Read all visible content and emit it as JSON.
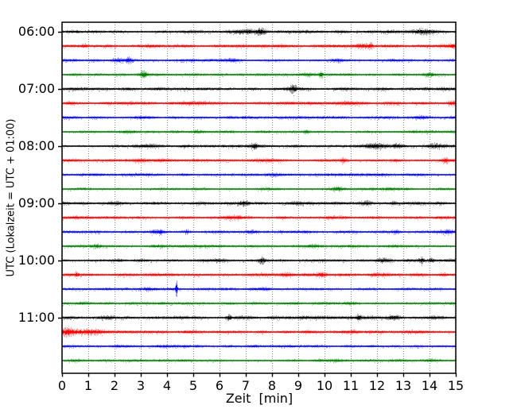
{
  "figure": {
    "background": "#ffffff"
  },
  "chart_data": {
    "type": "line",
    "subtype": "helicorder-seismogram-drumplot",
    "title": "",
    "xlabel": "Zeit  [min]",
    "ylabel": "UTC (Lokalzeit = UTC + 01:00)",
    "x_range": [
      0,
      15
    ],
    "x_ticks": [
      0,
      1,
      2,
      3,
      4,
      5,
      6,
      7,
      8,
      9,
      10,
      11,
      12,
      13,
      14,
      15
    ],
    "minutes_per_trace": 15,
    "grid": {
      "vertical_dotted": true,
      "color": "#8a8a8a"
    },
    "frame_color": "#000000",
    "palette": {
      "k": "#000000",
      "r": "#ff0000",
      "b": "#0000ff",
      "g": "#008000"
    },
    "y_tick_labels": [
      {
        "label": "06:00",
        "row": 0
      },
      {
        "label": "07:00",
        "row": 4
      },
      {
        "label": "08:00",
        "row": 8
      },
      {
        "label": "09:00",
        "row": 12
      },
      {
        "label": "10:00",
        "row": 16
      },
      {
        "label": "11:00",
        "row": 20
      }
    ],
    "traces": [
      {
        "time": "06:00",
        "color": "k",
        "base": 1.6,
        "events": [
          [
            5.0,
            0.4,
            0.5
          ],
          [
            7.0,
            0.8,
            0.6
          ],
          [
            7.6,
            2.2,
            0.18
          ],
          [
            8.3,
            0.6,
            0.3
          ],
          [
            12.4,
            0.5,
            0.3
          ],
          [
            13.8,
            1.0,
            0.35
          ]
        ]
      },
      {
        "time": "06:15",
        "color": "r",
        "base": 1.55,
        "events": [
          [
            0.85,
            0.8,
            0.12
          ],
          [
            3.4,
            0.4,
            0.3
          ],
          [
            8.2,
            0.5,
            0.25
          ],
          [
            11.4,
            1.2,
            0.3
          ],
          [
            11.75,
            1.5,
            0.1
          ],
          [
            14.9,
            0.9,
            0.15
          ]
        ]
      },
      {
        "time": "06:30",
        "color": "b",
        "base": 1.35,
        "events": [
          [
            2.1,
            0.6,
            0.3
          ],
          [
            2.55,
            1.2,
            0.12
          ],
          [
            6.5,
            0.4,
            0.3
          ],
          [
            10.4,
            0.8,
            0.25
          ],
          [
            12.6,
            0.5,
            0.2
          ]
        ]
      },
      {
        "time": "06:45",
        "color": "g",
        "base": 1.35,
        "events": [
          [
            2.3,
            0.5,
            0.3
          ],
          [
            3.1,
            2.2,
            0.12
          ],
          [
            9.3,
            0.9,
            0.3
          ],
          [
            9.85,
            1.6,
            0.08
          ],
          [
            14.0,
            0.8,
            0.2
          ]
        ]
      },
      {
        "time": "07:00",
        "color": "k",
        "base": 1.6,
        "events": [
          [
            4.0,
            0.4,
            0.5
          ],
          [
            8.55,
            0.8,
            0.3
          ],
          [
            8.8,
            2.0,
            0.12
          ],
          [
            12.0,
            0.4,
            0.4
          ],
          [
            14.6,
            0.7,
            0.3
          ]
        ]
      },
      {
        "time": "07:15",
        "color": "r",
        "base": 1.55,
        "events": [
          [
            0.3,
            0.5,
            0.2
          ],
          [
            5.0,
            0.3,
            0.5
          ],
          [
            11.0,
            0.4,
            0.4
          ],
          [
            14.85,
            1.8,
            0.18
          ]
        ]
      },
      {
        "time": "07:30",
        "color": "b",
        "base": 1.35,
        "events": [
          [
            3.0,
            0.3,
            0.4
          ],
          [
            7.0,
            0.4,
            0.3
          ],
          [
            13.7,
            0.6,
            0.3
          ]
        ]
      },
      {
        "time": "07:45",
        "color": "g",
        "base": 1.35,
        "events": [
          [
            2.5,
            0.4,
            0.3
          ],
          [
            5.2,
            0.5,
            0.3
          ],
          [
            9.3,
            1.4,
            0.1
          ],
          [
            11.5,
            0.4,
            0.3
          ]
        ]
      },
      {
        "time": "08:00",
        "color": "k",
        "base": 1.6,
        "events": [
          [
            3.0,
            0.4,
            0.5
          ],
          [
            7.3,
            1.6,
            0.15
          ],
          [
            11.9,
            0.8,
            0.4
          ],
          [
            12.8,
            0.8,
            0.2
          ],
          [
            14.2,
            0.5,
            0.3
          ]
        ]
      },
      {
        "time": "08:15",
        "color": "r",
        "base": 1.55,
        "events": [
          [
            3.0,
            0.5,
            0.8
          ],
          [
            8.0,
            0.6,
            0.5
          ],
          [
            10.7,
            1.2,
            0.1
          ],
          [
            14.6,
            1.3,
            0.12
          ]
        ]
      },
      {
        "time": "08:30",
        "color": "b",
        "base": 1.35,
        "events": [
          [
            2.0,
            0.3,
            0.4
          ],
          [
            8.0,
            0.3,
            0.5
          ],
          [
            12.3,
            0.5,
            0.25
          ]
        ]
      },
      {
        "time": "08:45",
        "color": "g",
        "base": 1.35,
        "events": [
          [
            1.5,
            0.4,
            0.3
          ],
          [
            10.5,
            1.0,
            0.2
          ],
          [
            12.4,
            0.6,
            0.2
          ]
        ]
      },
      {
        "time": "09:00",
        "color": "k",
        "base": 1.6,
        "events": [
          [
            2.0,
            0.3,
            0.5
          ],
          [
            6.9,
            1.1,
            0.15
          ],
          [
            9.0,
            0.4,
            0.4
          ],
          [
            11.6,
            1.3,
            0.25
          ],
          [
            12.65,
            1.1,
            0.15
          ]
        ]
      },
      {
        "time": "09:15",
        "color": "r",
        "base": 1.55,
        "events": [
          [
            0.5,
            0.5,
            0.15
          ],
          [
            6.5,
            0.4,
            0.4
          ],
          [
            8.3,
            0.5,
            0.3
          ],
          [
            10.2,
            0.8,
            0.2
          ]
        ]
      },
      {
        "time": "09:30",
        "color": "b",
        "base": 1.35,
        "events": [
          [
            3.65,
            1.5,
            0.25
          ],
          [
            4.75,
            1.2,
            0.08
          ],
          [
            7.2,
            1.1,
            0.2
          ],
          [
            9.0,
            0.4,
            0.3
          ],
          [
            12.7,
            0.9,
            0.12
          ],
          [
            14.7,
            0.9,
            0.2
          ]
        ]
      },
      {
        "time": "09:45",
        "color": "g",
        "base": 1.35,
        "events": [
          [
            1.3,
            0.7,
            0.2
          ],
          [
            3.6,
            0.4,
            0.3
          ],
          [
            9.5,
            0.7,
            0.25
          ],
          [
            12.5,
            0.4,
            0.3
          ]
        ]
      },
      {
        "time": "10:00",
        "color": "k",
        "base": 1.6,
        "events": [
          [
            6.0,
            0.6,
            0.4
          ],
          [
            7.6,
            1.9,
            0.15
          ],
          [
            9.7,
            0.4,
            0.4
          ],
          [
            12.2,
            0.6,
            0.3
          ],
          [
            13.7,
            1.4,
            0.1
          ],
          [
            14.05,
            1.4,
            0.1
          ]
        ]
      },
      {
        "time": "10:15",
        "color": "r",
        "base": 1.55,
        "events": [
          [
            0.55,
            1.0,
            0.07
          ],
          [
            8.5,
            1.3,
            0.2
          ],
          [
            9.9,
            1.3,
            0.2
          ],
          [
            12.0,
            0.4,
            0.4
          ],
          [
            14.5,
            0.9,
            0.15
          ]
        ]
      },
      {
        "time": "10:30",
        "color": "b",
        "base": 1.35,
        "events": [
          [
            3.3,
            1.1,
            0.3
          ],
          [
            4.35,
            6.5,
            0.035
          ],
          [
            7.8,
            0.4,
            0.4
          ],
          [
            11.5,
            0.6,
            0.25
          ]
        ]
      },
      {
        "time": "10:45",
        "color": "g",
        "base": 1.35,
        "events": [
          [
            0.9,
            0.5,
            0.25
          ],
          [
            4.0,
            0.3,
            0.4
          ],
          [
            6.3,
            0.4,
            0.3
          ],
          [
            11.0,
            0.3,
            0.4
          ]
        ]
      },
      {
        "time": "11:00",
        "color": "k",
        "base": 1.6,
        "events": [
          [
            1.8,
            0.7,
            0.35
          ],
          [
            4.8,
            0.4,
            0.6
          ],
          [
            6.35,
            1.9,
            0.1
          ],
          [
            9.0,
            0.5,
            0.4
          ],
          [
            11.3,
            1.3,
            0.07
          ],
          [
            12.6,
            1.0,
            0.25
          ],
          [
            14.2,
            0.5,
            0.3
          ]
        ]
      },
      {
        "time": "11:15",
        "color": "r",
        "base": 1.55,
        "events": [
          [
            0.18,
            3.8,
            0.22
          ],
          [
            1.0,
            0.9,
            0.7
          ],
          [
            6.0,
            0.3,
            0.8
          ],
          [
            11.0,
            0.3,
            0.8
          ]
        ]
      },
      {
        "time": "11:30",
        "color": "b",
        "base": 1.35,
        "events": [
          [
            3.5,
            0.3,
            0.4
          ],
          [
            8.5,
            0.5,
            0.3
          ],
          [
            11.7,
            0.3,
            0.3
          ]
        ]
      },
      {
        "time": "11:45",
        "color": "g",
        "base": 1.35,
        "events": [
          [
            0.5,
            0.3,
            0.3
          ],
          [
            10.5,
            0.7,
            0.25
          ],
          [
            14.0,
            0.8,
            0.25
          ]
        ]
      }
    ]
  }
}
